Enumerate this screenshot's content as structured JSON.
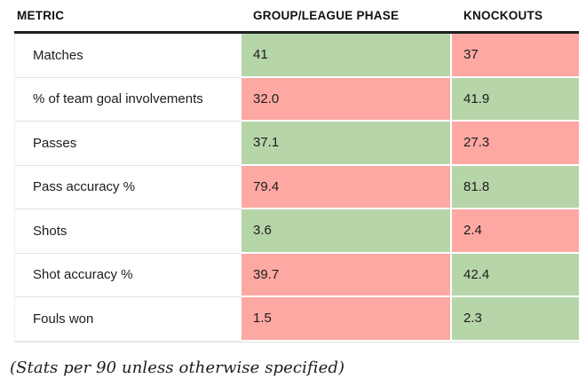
{
  "colors": {
    "green": "#b6d5a9",
    "red": "#fda8a2",
    "rule": "#1f1f1f",
    "divider": "#e3e3e3",
    "text": "#1c1c1c"
  },
  "footnote": "(Stats per 90 unless otherwise specified)",
  "chart_data": {
    "type": "table",
    "columns": [
      "METRIC",
      "GROUP/LEAGUE PHASE",
      "KNOCKOUTS"
    ],
    "highlight_legend": "green = better value, red = worse value",
    "rows": [
      {
        "metric": "Matches",
        "group": "41",
        "group_color": "green",
        "knockouts": "37",
        "knockouts_color": "red"
      },
      {
        "metric": "% of team goal involvements",
        "group": "32.0",
        "group_color": "red",
        "knockouts": "41.9",
        "knockouts_color": "green"
      },
      {
        "metric": "Passes",
        "group": "37.1",
        "group_color": "green",
        "knockouts": "27.3",
        "knockouts_color": "red"
      },
      {
        "metric": "Pass accuracy %",
        "group": "79.4",
        "group_color": "red",
        "knockouts": "81.8",
        "knockouts_color": "green"
      },
      {
        "metric": "Shots",
        "group": "3.6",
        "group_color": "green",
        "knockouts": "2.4",
        "knockouts_color": "red"
      },
      {
        "metric": "Shot accuracy %",
        "group": "39.7",
        "group_color": "red",
        "knockouts": "42.4",
        "knockouts_color": "green"
      },
      {
        "metric": "Fouls won",
        "group": "1.5",
        "group_color": "red",
        "knockouts": "2.3",
        "knockouts_color": "green"
      }
    ],
    "footnote": "(Stats per 90 unless otherwise specified)"
  }
}
